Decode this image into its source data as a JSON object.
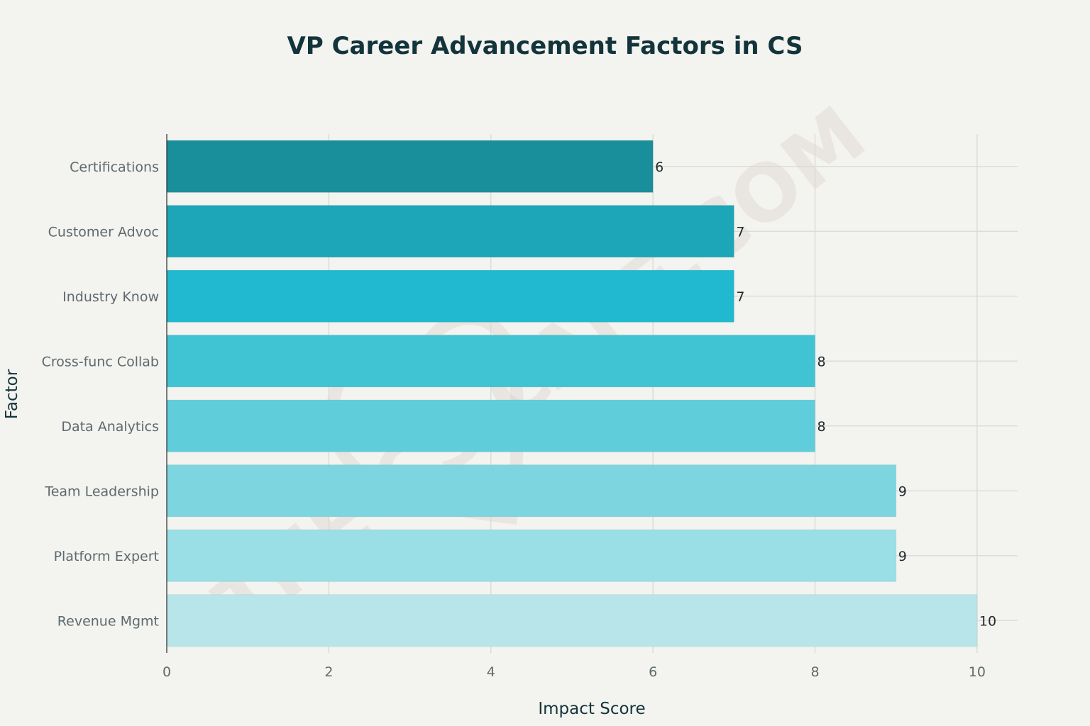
{
  "chart_data": {
    "type": "bar",
    "orientation": "horizontal",
    "title": "VP Career Advancement Factors in CS",
    "xlabel": "Impact Score",
    "ylabel": "Factor",
    "categories": [
      "Certifications",
      "Customer Advoc",
      "Industry Know",
      "Cross-func Collab",
      "Data Analytics",
      "Team Leadership",
      "Platform Expert",
      "Revenue Mgmt"
    ],
    "values": [
      6,
      7,
      7,
      8,
      8,
      9,
      9,
      10
    ],
    "data_labels": [
      "6",
      "7",
      "7",
      "8",
      "8",
      "9",
      "9",
      "10"
    ],
    "bar_colors": [
      "#1a8f9c",
      "#1ca6b8",
      "#20b9d0",
      "#40c3d3",
      "#5fcdda",
      "#7dd6df",
      "#9adee6",
      "#b8e5ea"
    ],
    "xlim": [
      0,
      10.5
    ],
    "xticks": [
      0,
      2,
      4,
      6,
      8,
      10
    ],
    "xtick_labels": [
      "0",
      "2",
      "4",
      "6",
      "8",
      "10"
    ],
    "grid": true,
    "legend": "none"
  },
  "watermark": {
    "text": "THE CS CAFE.COM"
  }
}
